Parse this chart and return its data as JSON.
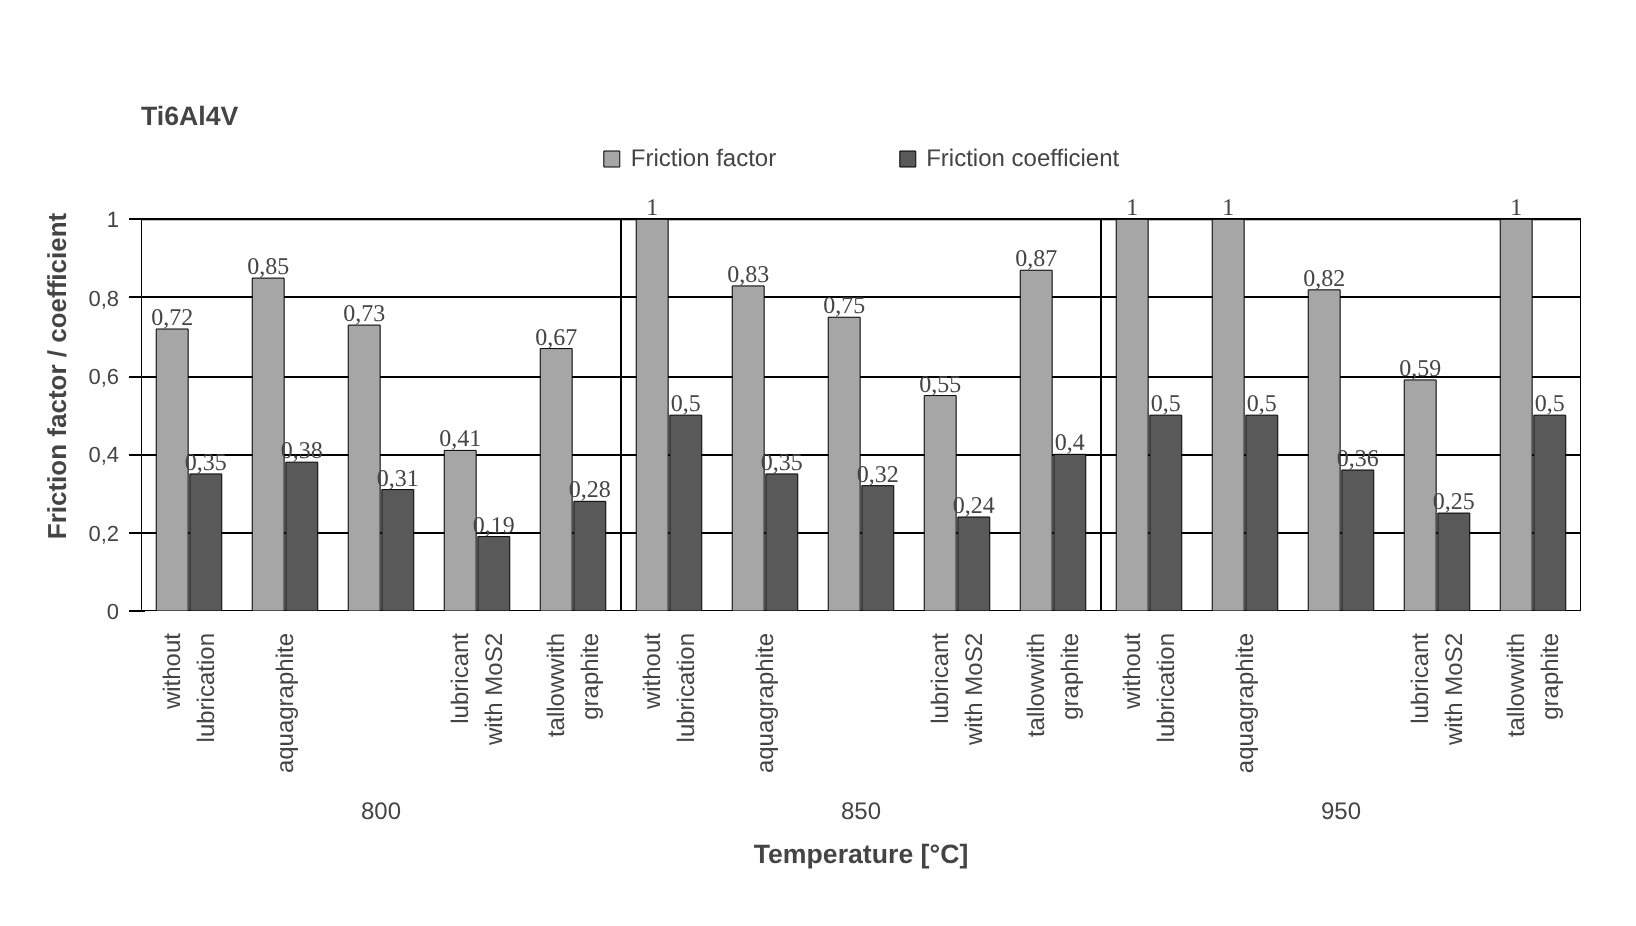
{
  "chart_data": {
    "type": "bar",
    "title": "Ti6Al4V",
    "xlabel": "Temperature [°C]",
    "ylabel": "Friction factor / coefficient",
    "categories": [
      "without\nlubrication",
      "aquagraphite",
      null,
      "lubricant\nwith MoS2",
      "tallowwith\ngraphite",
      "without\nlubrication",
      "aquagraphite",
      null,
      "lubricant\nwith MoS2",
      "tallowwith\ngraphite",
      "without\nlubrication",
      "aquagraphite",
      null,
      "lubricant\nwith MoS2",
      "tallowwith\ngraphite"
    ],
    "series": [
      {
        "name": "Friction factor",
        "color": "#a6a6a6",
        "values": [
          0.72,
          0.85,
          0.73,
          0.41,
          0.67,
          1,
          0.83,
          0.75,
          0.55,
          0.87,
          1,
          1,
          0.82,
          0.59,
          1
        ],
        "value_labels": [
          "0,72",
          "0,85",
          "0,73",
          "0,41",
          "0,67",
          "1",
          "0,83",
          "0,75",
          "0,55",
          "0,87",
          "1",
          "1",
          "0,82",
          "0,59",
          "1"
        ]
      },
      {
        "name": "Friction coefficient",
        "color": "#595959",
        "values": [
          0.35,
          0.38,
          0.31,
          0.19,
          0.28,
          0.5,
          0.35,
          0.32,
          0.24,
          0.4,
          0.5,
          0.5,
          0.36,
          0.25,
          0.5
        ],
        "value_labels": [
          "0,35",
          "0,38",
          "0,31",
          "0,19",
          "0,28",
          "0,5",
          "0,35",
          "0,32",
          "0,24",
          "0,4",
          "0,5",
          "0,5",
          "0,36",
          "0,25",
          "0,5"
        ]
      }
    ],
    "ylim": [
      0,
      1
    ],
    "yticks": [
      0,
      {
        "value": 0.2,
        "label": "0,2"
      },
      {
        "value": 0.4,
        "label": "0,4"
      },
      {
        "value": 0.6,
        "label": "0,6"
      },
      {
        "value": 0.8,
        "label": "0,8"
      },
      1
    ],
    "grid": "y",
    "legend": "top",
    "annotations": [
      "800",
      "850",
      "950"
    ]
  }
}
